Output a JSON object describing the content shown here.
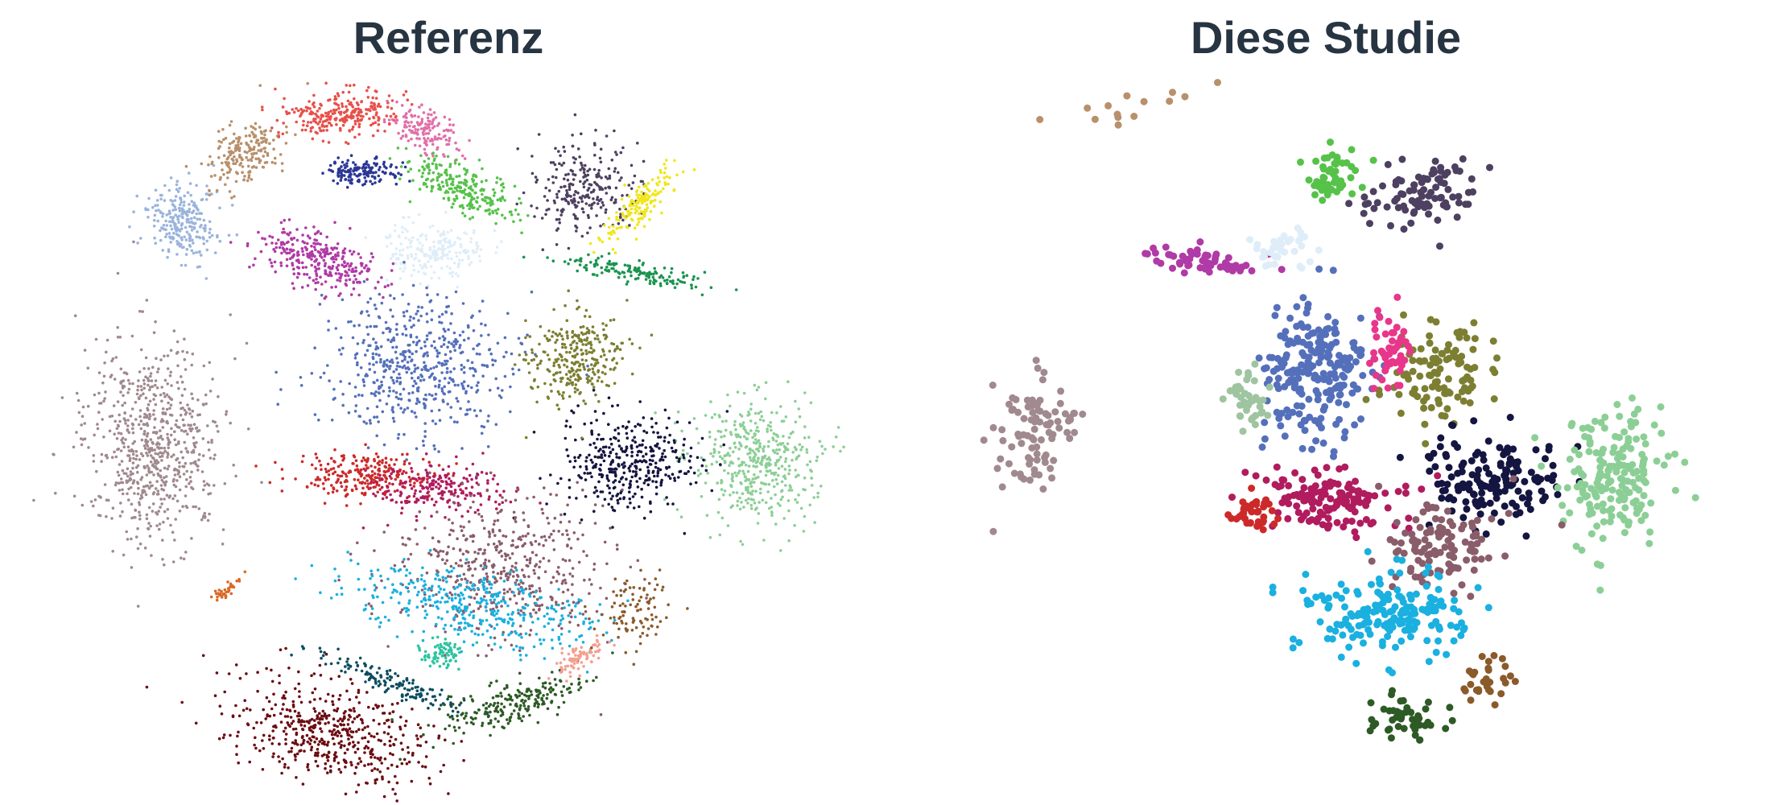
{
  "panels": [
    {
      "title": "Referenz"
    },
    {
      "title": "Diese Studie"
    }
  ]
}
